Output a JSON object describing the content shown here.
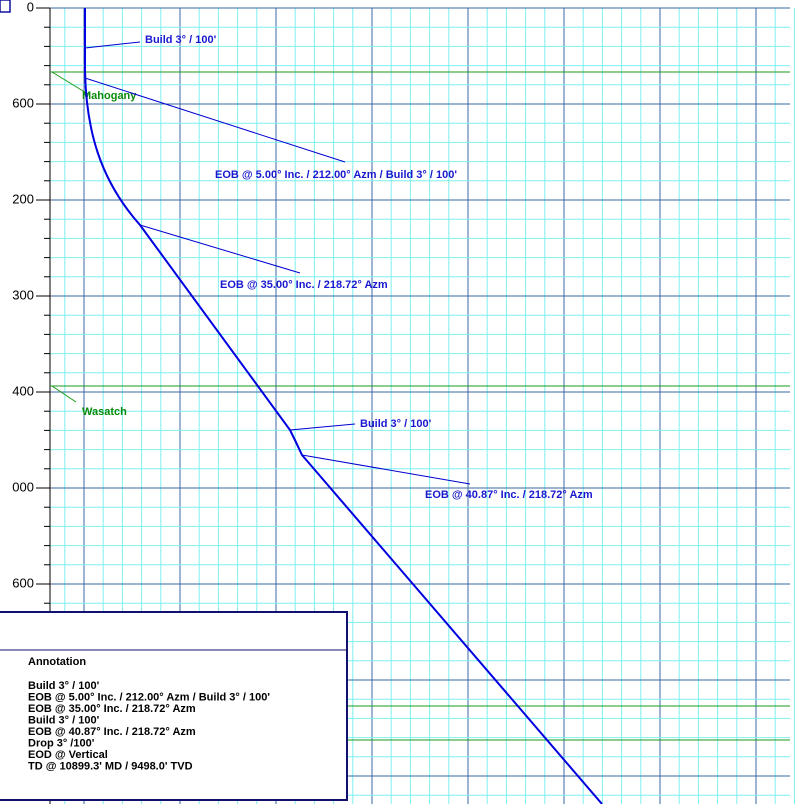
{
  "axis_labels": [
    "0",
    "600",
    "200",
    "300",
    "400",
    "000",
    "600"
  ],
  "annotations": [
    "Build 3° / 100'",
    "EOB @ 5.00° Inc. / 212.00° Azm / Build 3° / 100'",
    "EOB @ 35.00° Inc. / 218.72° Azm",
    "Build 3° / 100'",
    "EOB @ 40.87° Inc. / 218.72° Azm"
  ],
  "formations": [
    "Mahogany",
    "Wasatch"
  ],
  "legend": {
    "title": "Annotation",
    "items": [
      "Build 3° / 100'",
      "EOB @ 5.00° Inc. / 212.00° Azm / Build 3° / 100'",
      "EOB @ 35.00° Inc. / 218.72° Azm",
      "Build 3° / 100'",
      "EOB @ 40.87° Inc. / 218.72° Azm",
      "Drop 3° /100'",
      "EOD @ Vertical",
      "TD @ 10899.3' MD / 9498.0' TVD"
    ]
  }
}
